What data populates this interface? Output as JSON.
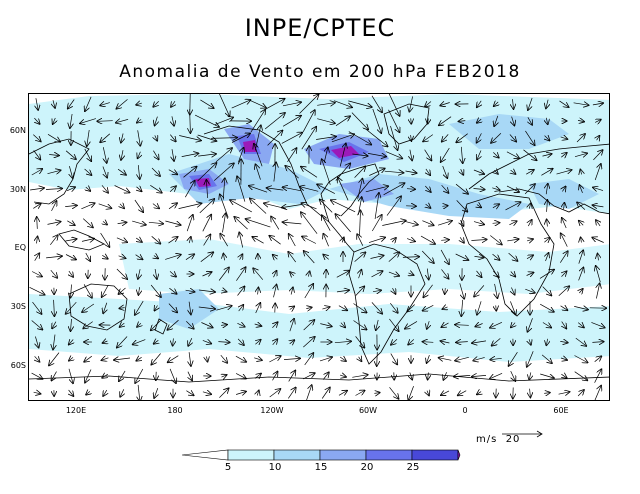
{
  "header": {
    "title": "INPE/CPTEC",
    "subtitle": "Anomalia de Vento em 200 hPa FEB2018"
  },
  "axes": {
    "lat_labels": [
      "60N",
      "30N",
      "EQ",
      "30S",
      "60S"
    ],
    "lon_labels": [
      "120E",
      "180",
      "120W",
      "60W",
      "0",
      "60E"
    ]
  },
  "colorbar": {
    "levels": [
      "5",
      "10",
      "15",
      "20",
      "25"
    ],
    "colors": [
      "#ffffff",
      "#cdf4fb",
      "#a8d8f6",
      "#8aa8f2",
      "#6873ec",
      "#4848d8",
      "#9b1ab9"
    ]
  },
  "reference_vector": {
    "units": "m/s",
    "value": "20"
  }
}
